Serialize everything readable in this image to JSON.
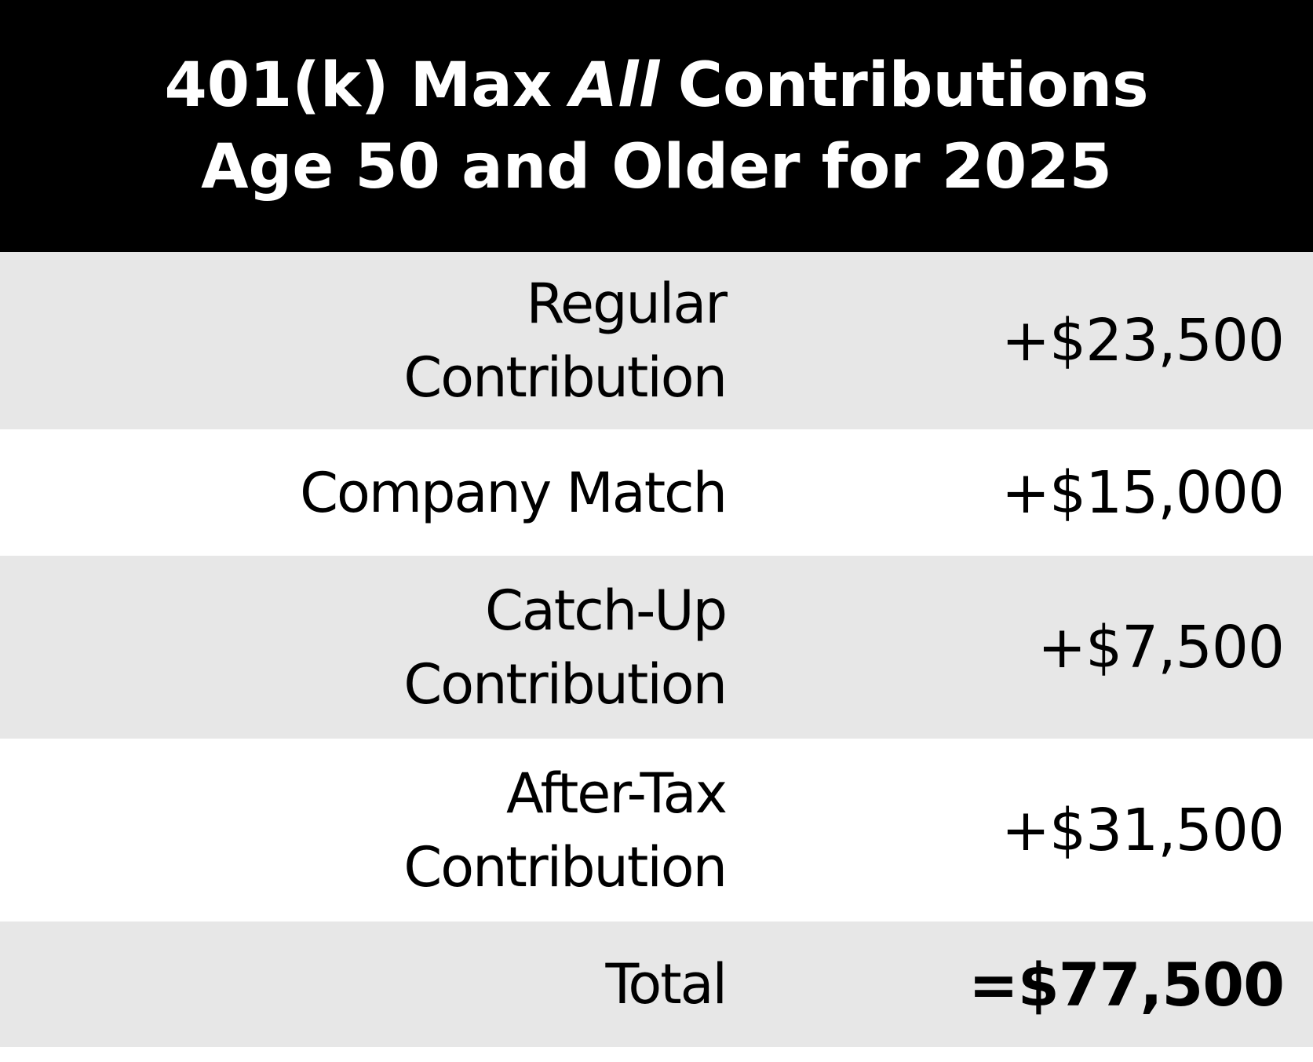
{
  "header": {
    "title_line_1": [
      "401(k) Max",
      "All",
      "Contributions"
    ],
    "title_line_2": "Age 50 and Older for 2025"
  },
  "table": {
    "rows": [
      {
        "label": [
          "Regular",
          "Contribution"
        ],
        "value": "+$23,500"
      },
      {
        "label": [
          "Company Match"
        ],
        "value": "+$15,000"
      },
      {
        "label": [
          "Catch-Up",
          "Contribution"
        ],
        "value": "+$7,500"
      },
      {
        "label": [
          "After-Tax",
          "Contribution"
        ],
        "value": "+$31,500"
      },
      {
        "label": [
          "Total"
        ],
        "value": "=$77,500"
      }
    ]
  }
}
